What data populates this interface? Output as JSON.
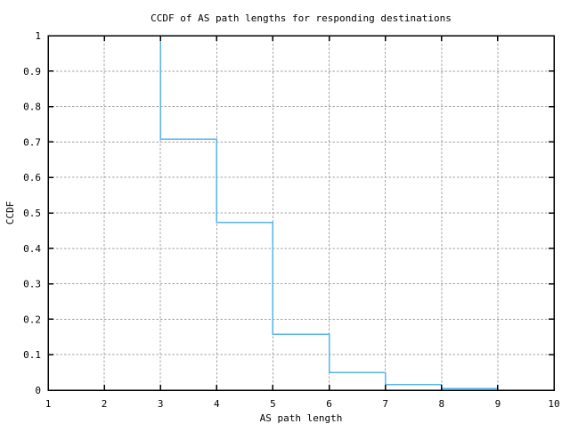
{
  "chart_data": {
    "type": "line",
    "subtype": "step-ccdf",
    "title": "CCDF of AS path lengths for responding destinations",
    "xlabel": "AS path length",
    "ylabel": "CCDF",
    "xlim": [
      1,
      10
    ],
    "ylim": [
      0,
      1
    ],
    "xticks": {
      "values": [
        1,
        2,
        3,
        4,
        5,
        6,
        7,
        8,
        9,
        10
      ],
      "labels": [
        "1",
        "2",
        "3",
        "4",
        "5",
        "6",
        "7",
        "8",
        "9",
        "10"
      ]
    },
    "yticks": {
      "values": [
        0,
        0.1,
        0.2,
        0.3,
        0.4,
        0.5,
        0.6,
        0.7,
        0.8,
        0.9,
        1
      ],
      "labels": [
        "0",
        "0.1",
        "0.2",
        "0.3",
        "0.4",
        "0.5",
        "0.6",
        "0.7",
        "0.8",
        "0.9",
        "1"
      ]
    },
    "grid": {
      "visible": true,
      "style": "dashed"
    },
    "legend": "none",
    "series": [
      {
        "name": "ccdf-of-as-path-length",
        "color": "#56b4e9",
        "points": [
          [
            3,
            1.0
          ],
          [
            3,
            0.708
          ],
          [
            4,
            0.708
          ],
          [
            4,
            0.473
          ],
          [
            5,
            0.473
          ],
          [
            5,
            0.158
          ],
          [
            6,
            0.158
          ],
          [
            6,
            0.05
          ],
          [
            7,
            0.05
          ],
          [
            7,
            0.016
          ],
          [
            8,
            0.016
          ],
          [
            8,
            0.004
          ],
          [
            9,
            0.004
          ],
          [
            9,
            0.0
          ]
        ]
      }
    ],
    "colors": {
      "background": "#ffffff",
      "axis": "#000000",
      "grid": "#a0a0a0",
      "text": "#000000",
      "line": "#56b4e9"
    }
  }
}
